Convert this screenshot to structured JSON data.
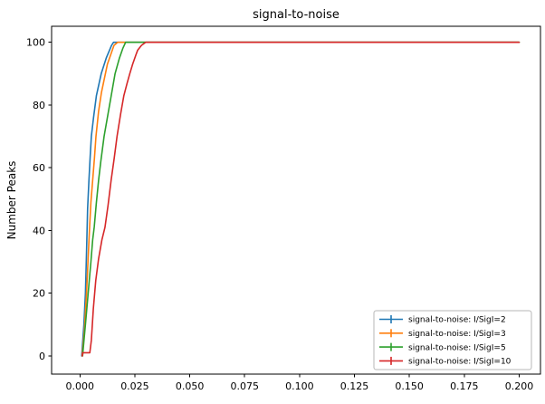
{
  "chart_data": {
    "type": "line",
    "title": "signal-to-noise",
    "xlabel": "",
    "ylabel": "Number Peaks",
    "xlim": [
      -0.0129,
      0.2097
    ],
    "ylim": [
      -5.8,
      105.1
    ],
    "xticks": [
      0.0,
      0.025,
      0.05,
      0.075,
      0.1,
      0.125,
      0.15,
      0.175,
      0.2
    ],
    "xtick_labels": [
      "0.000",
      "0.025",
      "0.050",
      "0.075",
      "0.100",
      "0.125",
      "0.150",
      "0.175",
      "0.200"
    ],
    "yticks": [
      0,
      20,
      40,
      60,
      80,
      100
    ],
    "ytick_labels": [
      "0",
      "20",
      "40",
      "60",
      "80",
      "100"
    ],
    "grid": false,
    "axes_color": "#000000",
    "background": "#ffffff",
    "legend": {
      "position": "lower right",
      "border_color": "#b7b7b7",
      "background": "#ffffff",
      "marker": "plus",
      "entries": [
        "signal-to-noise: I/SigI=2",
        "signal-to-noise: I/SigI=3",
        "signal-to-noise: I/SigI=5",
        "signal-to-noise: I/SigI=10"
      ]
    },
    "series": [
      {
        "name": "signal-to-noise: I/SigI=2",
        "color": "#1f77b4",
        "points": [
          [
            0.0008,
            0
          ],
          [
            0.0018,
            10
          ],
          [
            0.0025,
            20
          ],
          [
            0.003,
            33
          ],
          [
            0.0035,
            47
          ],
          [
            0.0041,
            56
          ],
          [
            0.0047,
            64
          ],
          [
            0.0052,
            70
          ],
          [
            0.0062,
            76
          ],
          [
            0.0075,
            83
          ],
          [
            0.0097,
            90
          ],
          [
            0.012,
            95
          ],
          [
            0.0144,
            99
          ],
          [
            0.0153,
            100
          ],
          [
            0.2,
            100
          ]
        ]
      },
      {
        "name": "signal-to-noise: I/SigI=3",
        "color": "#ff7f0e",
        "points": [
          [
            0.001,
            0
          ],
          [
            0.002,
            8
          ],
          [
            0.003,
            20
          ],
          [
            0.0038,
            32
          ],
          [
            0.0044,
            41
          ],
          [
            0.005,
            49
          ],
          [
            0.0058,
            56
          ],
          [
            0.0066,
            63
          ],
          [
            0.0073,
            70
          ],
          [
            0.0085,
            78
          ],
          [
            0.0098,
            84
          ],
          [
            0.011,
            88
          ],
          [
            0.0125,
            93
          ],
          [
            0.014,
            96
          ],
          [
            0.0155,
            99
          ],
          [
            0.0172,
            100
          ],
          [
            0.2,
            100
          ]
        ]
      },
      {
        "name": "signal-to-noise: I/SigI=5",
        "color": "#2ca02c",
        "points": [
          [
            0.0012,
            0
          ],
          [
            0.0025,
            10
          ],
          [
            0.004,
            22
          ],
          [
            0.005,
            30
          ],
          [
            0.0058,
            37
          ],
          [
            0.0065,
            41
          ],
          [
            0.0075,
            49
          ],
          [
            0.0085,
            56
          ],
          [
            0.0095,
            62
          ],
          [
            0.011,
            70
          ],
          [
            0.0125,
            76
          ],
          [
            0.014,
            82
          ],
          [
            0.016,
            90
          ],
          [
            0.018,
            95
          ],
          [
            0.0195,
            98
          ],
          [
            0.0208,
            100
          ],
          [
            0.2,
            100
          ]
        ]
      },
      {
        "name": "signal-to-noise: I/SigI=10",
        "color": "#d62728",
        "points": [
          [
            0.0011,
            0
          ],
          [
            0.0013,
            1
          ],
          [
            0.0045,
            1
          ],
          [
            0.0052,
            5
          ],
          [
            0.0061,
            15
          ],
          [
            0.0072,
            24
          ],
          [
            0.0085,
            31
          ],
          [
            0.01,
            37
          ],
          [
            0.0114,
            41
          ],
          [
            0.0128,
            48
          ],
          [
            0.0142,
            56
          ],
          [
            0.0156,
            63
          ],
          [
            0.0169,
            70
          ],
          [
            0.0185,
            77
          ],
          [
            0.02,
            83
          ],
          [
            0.0215,
            87
          ],
          [
            0.0227,
            90
          ],
          [
            0.024,
            93
          ],
          [
            0.0255,
            96
          ],
          [
            0.0263,
            97.5
          ],
          [
            0.028,
            99
          ],
          [
            0.03,
            100
          ],
          [
            0.2,
            100
          ]
        ]
      }
    ]
  }
}
